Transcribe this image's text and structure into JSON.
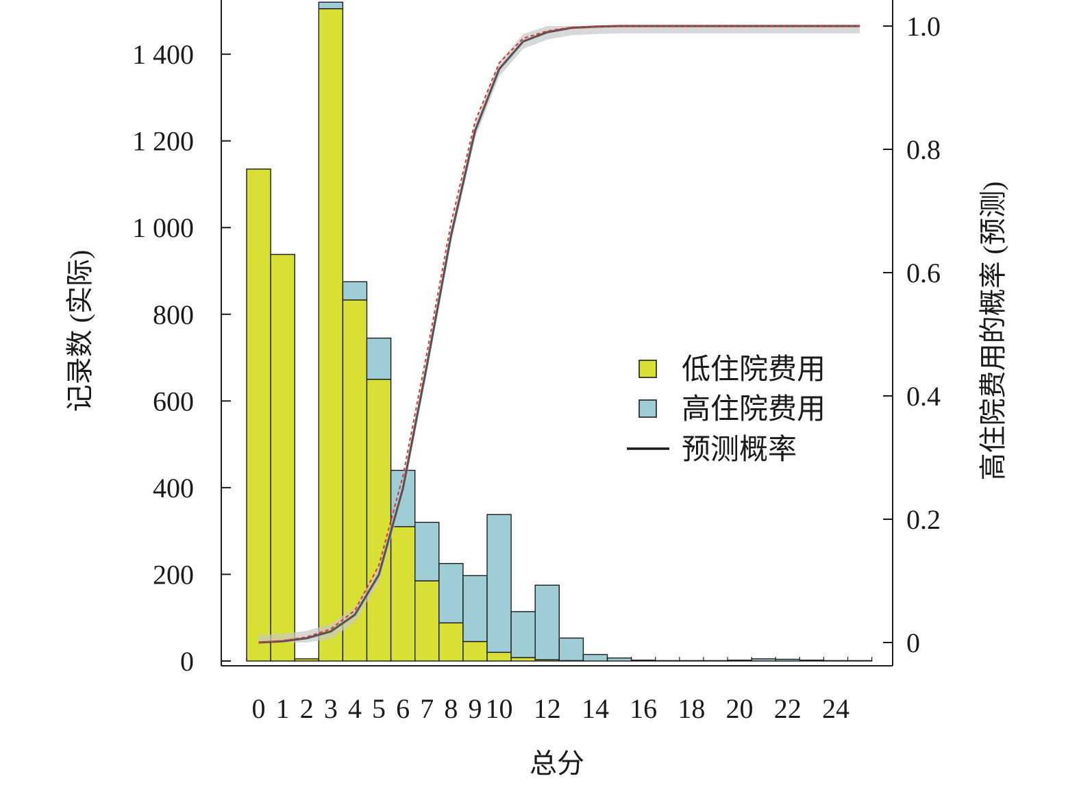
{
  "chart_data": {
    "type": "bar",
    "stacked": true,
    "xlabel": "总分",
    "ylabel": "记录数 (实际)",
    "y2label": "高住院费用的概率 (预测)",
    "x": [
      0,
      1,
      2,
      3,
      4,
      5,
      6,
      7,
      8,
      9,
      10,
      11,
      12,
      13,
      14,
      15,
      16,
      17,
      18,
      19,
      20,
      21,
      22,
      23,
      24,
      25
    ],
    "x_tick_labels": [
      "0",
      "1",
      "2",
      "3",
      "4",
      "5",
      "6",
      "7",
      "8",
      "9",
      "10",
      "12",
      "14",
      "16",
      "18",
      "20",
      "22",
      "24"
    ],
    "x_tick_values": [
      0,
      1,
      2,
      3,
      4,
      5,
      6,
      7,
      8,
      9,
      10,
      12,
      14,
      16,
      18,
      20,
      22,
      24
    ],
    "ylim": [
      0,
      1520
    ],
    "y_ticks": [
      0,
      200,
      400,
      600,
      800,
      1000,
      1200,
      1400
    ],
    "y_tick_labels": [
      "0",
      "200",
      "400",
      "600",
      "800",
      "1 000",
      "1 200",
      "1 400"
    ],
    "y2lim": [
      -0.03,
      1.03
    ],
    "y2_ticks": [
      0,
      0.2,
      0.4,
      0.6,
      0.8,
      1.0
    ],
    "y2_tick_labels": [
      "0",
      "0.2",
      "0.4",
      "0.6",
      "0.8",
      "1.0"
    ],
    "series": [
      {
        "name": "低住院费用",
        "color": "#d9e035",
        "values": [
          1135,
          938,
          5,
          1505,
          833,
          650,
          310,
          185,
          88,
          45,
          20,
          8,
          3,
          1,
          0,
          0,
          0,
          0,
          0,
          0,
          0,
          0,
          0,
          0,
          0,
          0
        ]
      },
      {
        "name": "高住院费用",
        "color": "#9fcdd6",
        "values": [
          0,
          0,
          0,
          15,
          42,
          95,
          130,
          135,
          137,
          152,
          318,
          106,
          172,
          52,
          15,
          7,
          2,
          1,
          1,
          1,
          2,
          5,
          4,
          2,
          1,
          1
        ]
      }
    ],
    "line": {
      "name": "预测概率",
      "color": "#555555",
      "ci_color": "#c8c8c8",
      "ref_color": "#e03030",
      "x": [
        0,
        1,
        2,
        3,
        4,
        5,
        6,
        7,
        8,
        9,
        10,
        11,
        12,
        13,
        14,
        15,
        16,
        17,
        18,
        19,
        20,
        21,
        22,
        23,
        24,
        25
      ],
      "values": [
        0.0,
        0.002,
        0.007,
        0.018,
        0.045,
        0.11,
        0.25,
        0.45,
        0.66,
        0.83,
        0.93,
        0.975,
        0.99,
        0.997,
        0.999,
        1.0,
        1.0,
        1.0,
        1.0,
        1.0,
        1.0,
        1.0,
        1.0,
        1.0,
        1.0,
        1.0
      ],
      "reference": [
        0.0,
        0.003,
        0.009,
        0.022,
        0.052,
        0.125,
        0.27,
        0.47,
        0.68,
        0.845,
        0.94,
        0.98,
        0.992,
        0.998,
        0.999,
        1.0,
        1.0,
        1.0,
        1.0,
        1.0,
        1.0,
        1.0,
        1.0,
        1.0,
        1.0,
        1.0
      ]
    },
    "legend": {
      "position": "center-right",
      "items": [
        {
          "label": "低住院费用",
          "type": "box",
          "color": "#d9e035"
        },
        {
          "label": "高住院费用",
          "type": "box",
          "color": "#9fcdd6"
        },
        {
          "label": "预测概率",
          "type": "line",
          "color": "#1a1a1a"
        }
      ]
    }
  }
}
